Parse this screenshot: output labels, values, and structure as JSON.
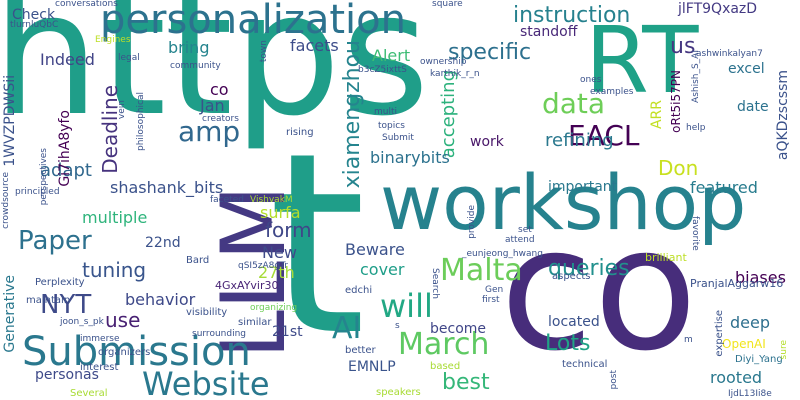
{
  "words": [
    {
      "text": "https",
      "color": "#1f9e89",
      "size": 170
    },
    {
      "text": "t",
      "color": "#1f9e89",
      "size": 250
    },
    {
      "text": "co",
      "color": "#472d7b",
      "size": 170
    },
    {
      "text": "workshop",
      "color": "#26828e",
      "size": 76
    },
    {
      "text": "RT",
      "color": "#1fa187",
      "size": 92
    },
    {
      "text": "LLM",
      "color": "#443983",
      "size": 88
    },
    {
      "text": "personalization",
      "color": "#2c728e",
      "size": 40
    },
    {
      "text": "Submission",
      "color": "#2a788e",
      "size": 40
    },
    {
      "text": "Website",
      "color": "#2a788e",
      "size": 32
    },
    {
      "text": "March",
      "color": "#5ec962",
      "size": 30
    },
    {
      "text": "Malta",
      "color": "#6ccd5a",
      "size": 30
    },
    {
      "text": "AI",
      "color": "#25858e",
      "size": 30
    },
    {
      "text": "will",
      "color": "#22a884",
      "size": 32
    },
    {
      "text": "amp",
      "color": "#31688e",
      "size": 28
    },
    {
      "text": "EACL",
      "color": "#440154",
      "size": 28
    },
    {
      "text": "data",
      "color": "#6ece58",
      "size": 28
    },
    {
      "text": "NYT",
      "color": "#3e4a89",
      "size": 26
    },
    {
      "text": "Paper",
      "color": "#2d718e",
      "size": 26
    },
    {
      "text": "xiamengzhou",
      "color": "#25848e",
      "size": 22
    },
    {
      "text": "Lots",
      "color": "#20a386",
      "size": 22
    },
    {
      "text": "queries",
      "color": "#21908d",
      "size": 22
    },
    {
      "text": "best",
      "color": "#35b779",
      "size": 22
    },
    {
      "text": "specific",
      "color": "#2d708e",
      "size": 22
    },
    {
      "text": "instruction",
      "color": "#26818e",
      "size": 22
    },
    {
      "text": "Don",
      "color": "#c8e020",
      "size": 20
    },
    {
      "text": "us",
      "color": "#453781",
      "size": 22
    },
    {
      "text": "use",
      "color": "#482173",
      "size": 20
    },
    {
      "text": "tuning",
      "color": "#39558c",
      "size": 20
    },
    {
      "text": "form",
      "color": "#3f4788",
      "size": 20
    },
    {
      "text": "Deadline",
      "color": "#46337e",
      "size": 20
    },
    {
      "text": "accepting",
      "color": "#2db27d",
      "size": 18
    },
    {
      "text": "refining",
      "color": "#2a788e",
      "size": 18
    },
    {
      "text": "adapt",
      "color": "#31688e",
      "size": 18
    },
    {
      "text": "multiple",
      "color": "#2fb47c",
      "size": 16
    },
    {
      "text": "behavior",
      "color": "#3e4989",
      "size": 16
    },
    {
      "text": "shashank_bits",
      "color": "#3b528b",
      "size": 16
    },
    {
      "text": "binarybits",
      "color": "#2c728e",
      "size": 16
    },
    {
      "text": "featured",
      "color": "#287c8e",
      "size": 16
    },
    {
      "text": "rooted",
      "color": "#2a788e",
      "size": 16
    },
    {
      "text": "deep",
      "color": "#2e6f8e",
      "size": 16
    },
    {
      "text": "biases",
      "color": "#440154",
      "size": 16
    },
    {
      "text": "cover",
      "color": "#1f9e89",
      "size": 16
    },
    {
      "text": "Beware",
      "color": "#3b528b",
      "size": 16
    },
    {
      "text": "facets",
      "color": "#3d4d8a",
      "size": 16
    },
    {
      "text": "Indeed",
      "color": "#414487",
      "size": 16
    },
    {
      "text": "bring",
      "color": "#25848e",
      "size": 16
    },
    {
      "text": "surfa",
      "color": "#b5de2b",
      "size": 16
    },
    {
      "text": "27th",
      "color": "#a5db36",
      "size": 16
    },
    {
      "text": "New",
      "color": "#3e4a89",
      "size": 16
    },
    {
      "text": "22nd",
      "color": "#3b528b",
      "size": 14
    },
    {
      "text": "21st",
      "color": "#3e4a89",
      "size": 14
    },
    {
      "text": "Jan",
      "color": "#3b528b",
      "size": 16
    },
    {
      "text": "co",
      "color": "#440154",
      "size": 16
    },
    {
      "text": "Alert",
      "color": "#3dbc74",
      "size": 16
    },
    {
      "text": "excel",
      "color": "#2c728e",
      "size": 14
    },
    {
      "text": "date",
      "color": "#2c728e",
      "size": 14
    },
    {
      "text": "personas",
      "color": "#3e4a89",
      "size": 14
    },
    {
      "text": "EMNLP",
      "color": "#3a548c",
      "size": 14
    },
    {
      "text": "located",
      "color": "#3b528b",
      "size": 14
    },
    {
      "text": "become",
      "color": "#404688",
      "size": 14
    },
    {
      "text": "work",
      "color": "#481668",
      "size": 14
    },
    {
      "text": "important",
      "color": "#2a788e",
      "size": 14
    },
    {
      "text": "standoff",
      "color": "#482878",
      "size": 14
    },
    {
      "text": "Check",
      "color": "#3b528b",
      "size": 14
    },
    {
      "text": "Generative",
      "color": "#2a788e",
      "size": 14
    },
    {
      "text": "ARR",
      "color": "#c2df23",
      "size": 14
    },
    {
      "text": "OpenAI",
      "color": "#f1e51d",
      "size": 12
    },
    {
      "text": "jlFT9QxazD",
      "color": "#443a83",
      "size": 14
    },
    {
      "text": "aQKDzscssm",
      "color": "#3b528b",
      "size": 14
    },
    {
      "text": "1WVZPDWSii",
      "color": "#3b528b",
      "size": 14
    },
    {
      "text": "Gi7ihA8yfo",
      "color": "#440154",
      "size": 14
    },
    {
      "text": "oRt5i57PN",
      "color": "#440154",
      "size": 12
    },
    {
      "text": "4GxAYvir30",
      "color": "#482475",
      "size": 11
    },
    {
      "text": "PranjalAggarw16",
      "color": "#3b528b",
      "size": 11
    },
    {
      "text": "joon_s_pk",
      "color": "#3b528b",
      "size": 9
    },
    {
      "text": "Diyi_Yang",
      "color": "#2c728e",
      "size": 10
    },
    {
      "text": "_eunjeong_hwang",
      "color": "#3b528b",
      "size": 9
    },
    {
      "text": "brilliant",
      "color": "#bddf26",
      "size": 11
    },
    {
      "text": "edchi",
      "color": "#3b528b",
      "size": 10
    },
    {
      "text": "Perplexity",
      "color": "#3b528b",
      "size": 10
    },
    {
      "text": "Bard",
      "color": "#3b528b",
      "size": 10
    },
    {
      "text": "VishvakM",
      "color": "#a8db34",
      "size": 9
    },
    {
      "text": "organizers",
      "color": "#3b528b",
      "size": 10
    },
    {
      "text": "visibility",
      "color": "#3b528b",
      "size": 10
    },
    {
      "text": "maintain",
      "color": "#3b528b",
      "size": 10
    },
    {
      "text": "immerse",
      "color": "#3b528b",
      "size": 9
    },
    {
      "text": "surrounding",
      "color": "#3b528b",
      "size": 9
    },
    {
      "text": "similar",
      "color": "#3b528b",
      "size": 10
    },
    {
      "text": "organizing",
      "color": "#6ece58",
      "size": 9
    },
    {
      "text": "interest",
      "color": "#3b528b",
      "size": 10
    },
    {
      "text": "Several",
      "color": "#a8db34",
      "size": 10
    },
    {
      "text": "speakers",
      "color": "#a8db34",
      "size": 10
    },
    {
      "text": "better",
      "color": "#3b528b",
      "size": 10
    },
    {
      "text": "based",
      "color": "#a8db34",
      "size": 10
    },
    {
      "text": "technical",
      "color": "#3b528b",
      "size": 10
    },
    {
      "text": "expertise",
      "color": "#3b528b",
      "size": 10
    },
    {
      "text": "post",
      "color": "#3b528b",
      "size": 9
    },
    {
      "text": "sure",
      "color": "#b5de2b",
      "size": 9
    },
    {
      "text": "IjdL13Ii8e",
      "color": "#3b528b",
      "size": 9
    },
    {
      "text": "Search",
      "color": "#3b528b",
      "size": 9
    },
    {
      "text": "first",
      "color": "#3b528b",
      "size": 9
    },
    {
      "text": "aspects",
      "color": "#3b528b",
      "size": 10
    },
    {
      "text": "favorite",
      "color": "#3b528b",
      "size": 9
    },
    {
      "text": "attend",
      "color": "#3b528b",
      "size": 9
    },
    {
      "text": "set",
      "color": "#3b528b",
      "size": 9
    },
    {
      "text": "provide",
      "color": "#3b528b",
      "size": 9
    },
    {
      "text": "Gen",
      "color": "#3b528b",
      "size": 9
    },
    {
      "text": "qSI5zA8gTr",
      "color": "#3b528b",
      "size": 9
    },
    {
      "text": "principled",
      "color": "#3b528b",
      "size": 9
    },
    {
      "text": "crowdsource",
      "color": "#3b528b",
      "size": 9
    },
    {
      "text": "faceted",
      "color": "#3b528b",
      "size": 9
    },
    {
      "text": "perspectives",
      "color": "#3b528b",
      "size": 9
    },
    {
      "text": "philosophical",
      "color": "#3b528b",
      "size": 9
    },
    {
      "text": "multi",
      "color": "#3b528b",
      "size": 9
    },
    {
      "text": "topics",
      "color": "#3b528b",
      "size": 9
    },
    {
      "text": "Submit",
      "color": "#3b528b",
      "size": 9
    },
    {
      "text": "rising",
      "color": "#3b528b",
      "size": 10
    },
    {
      "text": "creators",
      "color": "#3b528b",
      "size": 9
    },
    {
      "text": "community",
      "color": "#3b528b",
      "size": 9
    },
    {
      "text": "Engines",
      "color": "#bddf26",
      "size": 9
    },
    {
      "text": "legal",
      "color": "#3b528b",
      "size": 9
    },
    {
      "text": "vein",
      "color": "#3b528b",
      "size": 9
    },
    {
      "text": "conversations",
      "color": "#3b528b",
      "size": 9
    },
    {
      "text": "tlurnluQbC",
      "color": "#3b528b",
      "size": 9
    },
    {
      "text": "square",
      "color": "#3b528b",
      "size": 9
    },
    {
      "text": "town",
      "color": "#3b528b",
      "size": 9
    },
    {
      "text": "ownership",
      "color": "#3b528b",
      "size": 9
    },
    {
      "text": "b3cZ5ixttS",
      "color": "#3b528b",
      "size": 9
    },
    {
      "text": "karthik_r_n",
      "color": "#3b528b",
      "size": 9
    },
    {
      "text": "Ashish_S_AI",
      "color": "#3b528b",
      "size": 9
    },
    {
      "text": "ashwinkalyan7",
      "color": "#3b528b",
      "size": 9
    },
    {
      "text": "ones",
      "color": "#3b528b",
      "size": 9
    },
    {
      "text": "examples",
      "color": "#3b528b",
      "size": 9
    },
    {
      "text": "help",
      "color": "#3b528b",
      "size": 9
    },
    {
      "text": "m",
      "color": "#3b528b",
      "size": 9
    },
    {
      "text": "s",
      "color": "#3b528b",
      "size": 9
    }
  ]
}
